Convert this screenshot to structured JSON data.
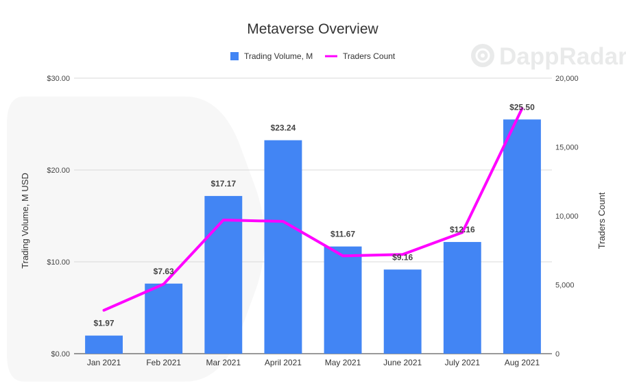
{
  "watermark": {
    "brand": "DappRadar"
  },
  "chart_data": {
    "type": "bar",
    "title": "Metaverse Overview",
    "categories": [
      "Jan 2021",
      "Feb 2021",
      "Mar 2021",
      "April 2021",
      "May 2021",
      "June 2021",
      "July 2021",
      "Aug 2021"
    ],
    "series": [
      {
        "name": "Trading Volume, M",
        "type": "bar",
        "axis": "left",
        "color": "#4285f4",
        "values": [
          1.97,
          7.63,
          17.17,
          23.24,
          11.67,
          9.16,
          12.16,
          25.5
        ],
        "data_labels": [
          "$1.97",
          "$7.63",
          "$17.17",
          "$23.24",
          "$11.67",
          "$9.16",
          "$12.16",
          "$25.50"
        ]
      },
      {
        "name": "Traders Count",
        "type": "line",
        "axis": "right",
        "color": "#ff00ff",
        "values": [
          3150,
          5050,
          9700,
          9600,
          7100,
          7200,
          8800,
          17800
        ]
      }
    ],
    "y_left": {
      "label": "Trading Volume, M USD",
      "ylim": [
        0,
        30
      ],
      "ticks": [
        0,
        10,
        20,
        30
      ],
      "tick_labels": [
        "$0.00",
        "$10.00",
        "$20.00",
        "$30.00"
      ]
    },
    "y_right": {
      "label": "Traders Count",
      "ylim": [
        0,
        20000
      ],
      "ticks": [
        0,
        5000,
        10000,
        15000,
        20000
      ],
      "tick_labels": [
        "0",
        "5,000",
        "10,000",
        "15,000",
        "20,000"
      ]
    },
    "grid": true,
    "legend_position": "top-center"
  }
}
